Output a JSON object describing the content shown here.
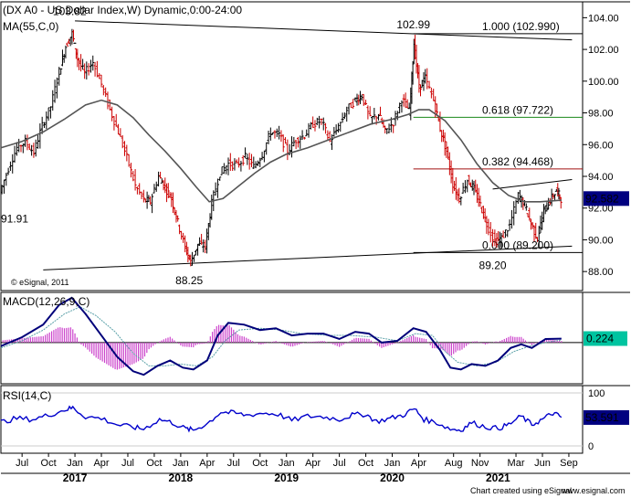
{
  "chart_data": {
    "type": "line",
    "symbol": "DX A0",
    "instrument": "US Dollar Index",
    "timeframe": "W",
    "session": "Dynamic,0:00-24:00",
    "header_text": "(DX A0 - US Dollar Index,W) Dynamic,0:00-24:00",
    "ma_label": "MA(55,C,0)",
    "last_price": "92.582",
    "price_axis": {
      "ylim": [
        86.8,
        105.0
      ],
      "ticks": [
        "104.00",
        "102.00",
        "100.00",
        "98.00",
        "96.00",
        "94.00",
        "92.00",
        "90.00",
        "88.00"
      ],
      "tick_values": [
        104,
        102,
        100,
        98,
        96,
        94,
        92,
        90,
        88
      ]
    },
    "x_axis": {
      "month_ticks": [
        "Jul",
        "Oct",
        "Jan",
        "Apr",
        "Jul",
        "Oct",
        "Jan",
        "Apr",
        "Jul",
        "Oct",
        "Jan",
        "Apr",
        "Jul",
        "Oct",
        "Jan",
        "Apr",
        "Aug",
        "Nov",
        "Mar",
        "Jun",
        "Sep"
      ],
      "month_tick_t": [
        2016.5,
        2016.75,
        2017.0,
        2017.25,
        2017.5,
        2017.75,
        2018.0,
        2018.25,
        2018.5,
        2018.75,
        2019.0,
        2019.25,
        2019.5,
        2019.75,
        2020.0,
        2020.25,
        2020.58,
        2020.83,
        2021.17,
        2021.42,
        2021.67
      ],
      "year_ticks": [
        "2017",
        "2018",
        "2019",
        "2020",
        "2021"
      ],
      "year_tick_t": [
        2017.0,
        2018.0,
        2019.0,
        2020.0,
        2021.0
      ],
      "range": [
        2016.3,
        2021.8
      ]
    },
    "price_series": [
      {
        "t": 2016.3,
        "v": 93.0
      },
      {
        "t": 2016.38,
        "v": 94.5
      },
      {
        "t": 2016.46,
        "v": 95.8
      },
      {
        "t": 2016.54,
        "v": 96.2
      },
      {
        "t": 2016.62,
        "v": 95.5
      },
      {
        "t": 2016.7,
        "v": 97.2
      },
      {
        "t": 2016.78,
        "v": 98.4
      },
      {
        "t": 2016.86,
        "v": 100.6
      },
      {
        "t": 2016.92,
        "v": 102.2
      },
      {
        "t": 2016.98,
        "v": 103.0
      },
      {
        "t": 2017.03,
        "v": 101.4
      },
      {
        "t": 2017.1,
        "v": 100.5
      },
      {
        "t": 2017.18,
        "v": 101.2
      },
      {
        "t": 2017.26,
        "v": 99.8
      },
      {
        "t": 2017.34,
        "v": 98.2
      },
      {
        "t": 2017.42,
        "v": 96.8
      },
      {
        "t": 2017.5,
        "v": 95.2
      },
      {
        "t": 2017.58,
        "v": 93.4
      },
      {
        "t": 2017.66,
        "v": 92.5
      },
      {
        "t": 2017.72,
        "v": 92.4
      },
      {
        "t": 2017.8,
        "v": 94.0
      },
      {
        "t": 2017.86,
        "v": 93.3
      },
      {
        "t": 2017.92,
        "v": 92.6
      },
      {
        "t": 2017.98,
        "v": 91.1
      },
      {
        "t": 2018.05,
        "v": 89.5
      },
      {
        "t": 2018.1,
        "v": 88.6
      },
      {
        "t": 2018.17,
        "v": 89.7
      },
      {
        "t": 2018.24,
        "v": 89.6
      },
      {
        "t": 2018.3,
        "v": 92.3
      },
      {
        "t": 2018.38,
        "v": 94.2
      },
      {
        "t": 2018.46,
        "v": 94.8
      },
      {
        "t": 2018.54,
        "v": 94.7
      },
      {
        "t": 2018.62,
        "v": 95.2
      },
      {
        "t": 2018.7,
        "v": 94.6
      },
      {
        "t": 2018.78,
        "v": 95.4
      },
      {
        "t": 2018.86,
        "v": 96.8
      },
      {
        "t": 2018.94,
        "v": 96.6
      },
      {
        "t": 2019.02,
        "v": 95.6
      },
      {
        "t": 2019.1,
        "v": 96.3
      },
      {
        "t": 2019.18,
        "v": 96.6
      },
      {
        "t": 2019.26,
        "v": 97.3
      },
      {
        "t": 2019.34,
        "v": 97.5
      },
      {
        "t": 2019.42,
        "v": 96.2
      },
      {
        "t": 2019.5,
        "v": 97.1
      },
      {
        "t": 2019.58,
        "v": 98.2
      },
      {
        "t": 2019.66,
        "v": 98.8
      },
      {
        "t": 2019.72,
        "v": 99.1
      },
      {
        "t": 2019.8,
        "v": 97.6
      },
      {
        "t": 2019.88,
        "v": 97.9
      },
      {
        "t": 2019.94,
        "v": 96.8
      },
      {
        "t": 2020.02,
        "v": 97.4
      },
      {
        "t": 2020.1,
        "v": 98.9
      },
      {
        "t": 2020.17,
        "v": 98.1
      },
      {
        "t": 2020.21,
        "v": 102.4
      },
      {
        "t": 2020.26,
        "v": 99.6
      },
      {
        "t": 2020.32,
        "v": 100.2
      },
      {
        "t": 2020.4,
        "v": 98.8
      },
      {
        "t": 2020.46,
        "v": 97.0
      },
      {
        "t": 2020.52,
        "v": 95.6
      },
      {
        "t": 2020.58,
        "v": 93.5
      },
      {
        "t": 2020.64,
        "v": 92.6
      },
      {
        "t": 2020.72,
        "v": 93.8
      },
      {
        "t": 2020.78,
        "v": 93.2
      },
      {
        "t": 2020.84,
        "v": 92.2
      },
      {
        "t": 2020.9,
        "v": 91.0
      },
      {
        "t": 2020.98,
        "v": 89.9
      },
      {
        "t": 2021.04,
        "v": 90.1
      },
      {
        "t": 2021.12,
        "v": 90.9
      },
      {
        "t": 2021.2,
        "v": 92.8
      },
      {
        "t": 2021.26,
        "v": 92.2
      },
      {
        "t": 2021.32,
        "v": 91.0
      },
      {
        "t": 2021.38,
        "v": 90.1
      },
      {
        "t": 2021.44,
        "v": 91.8
      },
      {
        "t": 2021.5,
        "v": 92.5
      },
      {
        "t": 2021.56,
        "v": 93.1
      },
      {
        "t": 2021.6,
        "v": 92.6
      }
    ],
    "ma_series": [
      {
        "t": 2016.3,
        "v": 95.8
      },
      {
        "t": 2016.5,
        "v": 96.2
      },
      {
        "t": 2016.7,
        "v": 96.8
      },
      {
        "t": 2016.9,
        "v": 97.6
      },
      {
        "t": 2017.1,
        "v": 98.5
      },
      {
        "t": 2017.25,
        "v": 98.8
      },
      {
        "t": 2017.4,
        "v": 98.5
      },
      {
        "t": 2017.55,
        "v": 97.7
      },
      {
        "t": 2017.7,
        "v": 96.6
      },
      {
        "t": 2017.85,
        "v": 95.6
      },
      {
        "t": 2018.0,
        "v": 94.5
      },
      {
        "t": 2018.15,
        "v": 93.3
      },
      {
        "t": 2018.27,
        "v": 92.4
      },
      {
        "t": 2018.4,
        "v": 92.6
      },
      {
        "t": 2018.55,
        "v": 93.4
      },
      {
        "t": 2018.7,
        "v": 94.2
      },
      {
        "t": 2018.85,
        "v": 94.9
      },
      {
        "t": 2019.0,
        "v": 95.4
      },
      {
        "t": 2019.2,
        "v": 95.8
      },
      {
        "t": 2019.4,
        "v": 96.3
      },
      {
        "t": 2019.6,
        "v": 96.8
      },
      {
        "t": 2019.8,
        "v": 97.3
      },
      {
        "t": 2020.0,
        "v": 97.6
      },
      {
        "t": 2020.15,
        "v": 97.9
      },
      {
        "t": 2020.25,
        "v": 98.2
      },
      {
        "t": 2020.35,
        "v": 98.2
      },
      {
        "t": 2020.5,
        "v": 97.5
      },
      {
        "t": 2020.65,
        "v": 96.3
      },
      {
        "t": 2020.8,
        "v": 94.8
      },
      {
        "t": 2020.95,
        "v": 93.6
      },
      {
        "t": 2021.1,
        "v": 92.8
      },
      {
        "t": 2021.25,
        "v": 92.4
      },
      {
        "t": 2021.4,
        "v": 92.4
      },
      {
        "t": 2021.6,
        "v": 92.5
      }
    ],
    "trendlines": [
      {
        "name": "upper-channel",
        "t1": 2017.0,
        "v1": 103.8,
        "t2": 2021.7,
        "v2": 102.6,
        "color": "#000000"
      },
      {
        "name": "lower-channel",
        "t1": 2016.7,
        "v1": 88.1,
        "t2": 2021.7,
        "v2": 89.6,
        "color": "#000000"
      },
      {
        "name": "recent-upper",
        "t1": 2020.95,
        "v1": 93.2,
        "t2": 2021.7,
        "v2": 93.8,
        "color": "#000000"
      }
    ],
    "fibo_levels": [
      {
        "label": "1.000 (102.990)",
        "value": 102.99,
        "color": "#000000",
        "from": 2020.2
      },
      {
        "label": "0.618 (97.722)",
        "value": 97.722,
        "color": "#1a8a1a",
        "from": 2020.2
      },
      {
        "label": "0.382 (94.468)",
        "value": 94.468,
        "color": "#a01010",
        "from": 2020.2
      },
      {
        "label": "0.000 (89.200)",
        "value": 89.2,
        "color": "#000000",
        "from": 2020.2
      }
    ],
    "annotations": [
      {
        "text": "103.82",
        "t": 2016.95,
        "v": 103.82
      },
      {
        "text": "102.99",
        "t": 2020.2,
        "v": 102.99
      },
      {
        "text": "88.25",
        "t": 2018.08,
        "v": 88.25
      },
      {
        "text": "89.20",
        "t": 2020.95,
        "v": 89.2
      },
      {
        "text": "91.91",
        "t": 2016.3,
        "v": 91.91
      }
    ],
    "macd": {
      "label": "MACD(12,26,9,C)",
      "value_label": "0.224",
      "macd_series": [
        {
          "t": 2016.3,
          "v": -0.2
        },
        {
          "t": 2016.5,
          "v": 0.3
        },
        {
          "t": 2016.7,
          "v": 1.0
        },
        {
          "t": 2016.85,
          "v": 2.1
        },
        {
          "t": 2016.97,
          "v": 2.5
        },
        {
          "t": 2017.1,
          "v": 1.6
        },
        {
          "t": 2017.25,
          "v": 0.4
        },
        {
          "t": 2017.4,
          "v": -0.8
        },
        {
          "t": 2017.55,
          "v": -1.6
        },
        {
          "t": 2017.65,
          "v": -1.8
        },
        {
          "t": 2017.78,
          "v": -1.3
        },
        {
          "t": 2017.9,
          "v": -1.0
        },
        {
          "t": 2018.02,
          "v": -1.4
        },
        {
          "t": 2018.12,
          "v": -1.5
        },
        {
          "t": 2018.25,
          "v": -1.0
        },
        {
          "t": 2018.35,
          "v": 0.4
        },
        {
          "t": 2018.45,
          "v": 1.1
        },
        {
          "t": 2018.6,
          "v": 1.0
        },
        {
          "t": 2018.75,
          "v": 0.7
        },
        {
          "t": 2018.9,
          "v": 0.8
        },
        {
          "t": 2019.05,
          "v": 0.4
        },
        {
          "t": 2019.2,
          "v": 0.5
        },
        {
          "t": 2019.35,
          "v": 0.5
        },
        {
          "t": 2019.5,
          "v": 0.2
        },
        {
          "t": 2019.65,
          "v": 0.6
        },
        {
          "t": 2019.78,
          "v": 0.5
        },
        {
          "t": 2019.9,
          "v": 0.0
        },
        {
          "t": 2020.05,
          "v": 0.1
        },
        {
          "t": 2020.2,
          "v": 0.8
        },
        {
          "t": 2020.32,
          "v": 0.6
        },
        {
          "t": 2020.45,
          "v": -0.4
        },
        {
          "t": 2020.55,
          "v": -1.4
        },
        {
          "t": 2020.65,
          "v": -1.5
        },
        {
          "t": 2020.75,
          "v": -1.2
        },
        {
          "t": 2020.88,
          "v": -1.3
        },
        {
          "t": 2021.0,
          "v": -1.0
        },
        {
          "t": 2021.12,
          "v": -0.3
        },
        {
          "t": 2021.22,
          "v": -0.1
        },
        {
          "t": 2021.32,
          "v": -0.3
        },
        {
          "t": 2021.45,
          "v": 0.2
        },
        {
          "t": 2021.6,
          "v": 0.22
        }
      ],
      "signal_series": [
        {
          "t": 2016.3,
          "v": -0.3
        },
        {
          "t": 2016.5,
          "v": 0.1
        },
        {
          "t": 2016.7,
          "v": 0.7
        },
        {
          "t": 2016.9,
          "v": 1.6
        },
        {
          "t": 2017.05,
          "v": 2.0
        },
        {
          "t": 2017.2,
          "v": 1.5
        },
        {
          "t": 2017.38,
          "v": 0.6
        },
        {
          "t": 2017.55,
          "v": -0.6
        },
        {
          "t": 2017.7,
          "v": -1.3
        },
        {
          "t": 2017.85,
          "v": -1.3
        },
        {
          "t": 2018.0,
          "v": -1.2
        },
        {
          "t": 2018.15,
          "v": -1.3
        },
        {
          "t": 2018.3,
          "v": -0.8
        },
        {
          "t": 2018.42,
          "v": 0.1
        },
        {
          "t": 2018.55,
          "v": 0.7
        },
        {
          "t": 2018.75,
          "v": 0.8
        },
        {
          "t": 2018.95,
          "v": 0.7
        },
        {
          "t": 2019.15,
          "v": 0.5
        },
        {
          "t": 2019.4,
          "v": 0.4
        },
        {
          "t": 2019.6,
          "v": 0.4
        },
        {
          "t": 2019.85,
          "v": 0.3
        },
        {
          "t": 2020.05,
          "v": 0.1
        },
        {
          "t": 2020.22,
          "v": 0.5
        },
        {
          "t": 2020.38,
          "v": 0.4
        },
        {
          "t": 2020.5,
          "v": -0.5
        },
        {
          "t": 2020.62,
          "v": -1.1
        },
        {
          "t": 2020.8,
          "v": -1.3
        },
        {
          "t": 2020.98,
          "v": -1.1
        },
        {
          "t": 2021.15,
          "v": -0.5
        },
        {
          "t": 2021.3,
          "v": -0.2
        },
        {
          "t": 2021.45,
          "v": 0.0
        },
        {
          "t": 2021.6,
          "v": 0.15
        }
      ],
      "ylim": [
        -2.3,
        2.8
      ]
    },
    "rsi": {
      "label": "RSI(14,C)",
      "value_label": "53.591",
      "axis_ticks": [
        "100",
        "0"
      ],
      "ylim": [
        0,
        100
      ],
      "series": [
        {
          "t": 2016.3,
          "v": 45
        },
        {
          "t": 2016.45,
          "v": 52
        },
        {
          "t": 2016.6,
          "v": 50
        },
        {
          "t": 2016.75,
          "v": 58
        },
        {
          "t": 2016.9,
          "v": 68
        },
        {
          "t": 2016.98,
          "v": 72
        },
        {
          "t": 2017.1,
          "v": 55
        },
        {
          "t": 2017.25,
          "v": 52
        },
        {
          "t": 2017.4,
          "v": 40
        },
        {
          "t": 2017.55,
          "v": 35
        },
        {
          "t": 2017.65,
          "v": 32
        },
        {
          "t": 2017.8,
          "v": 50
        },
        {
          "t": 2017.92,
          "v": 44
        },
        {
          "t": 2018.05,
          "v": 32
        },
        {
          "t": 2018.12,
          "v": 30
        },
        {
          "t": 2018.25,
          "v": 42
        },
        {
          "t": 2018.38,
          "v": 64
        },
        {
          "t": 2018.5,
          "v": 62
        },
        {
          "t": 2018.62,
          "v": 58
        },
        {
          "t": 2018.78,
          "v": 62
        },
        {
          "t": 2018.92,
          "v": 60
        },
        {
          "t": 2019.05,
          "v": 48
        },
        {
          "t": 2019.2,
          "v": 56
        },
        {
          "t": 2019.35,
          "v": 55
        },
        {
          "t": 2019.5,
          "v": 50
        },
        {
          "t": 2019.62,
          "v": 58
        },
        {
          "t": 2019.75,
          "v": 60
        },
        {
          "t": 2019.85,
          "v": 46
        },
        {
          "t": 2019.98,
          "v": 52
        },
        {
          "t": 2020.1,
          "v": 58
        },
        {
          "t": 2020.21,
          "v": 70
        },
        {
          "t": 2020.3,
          "v": 50
        },
        {
          "t": 2020.42,
          "v": 44
        },
        {
          "t": 2020.55,
          "v": 32
        },
        {
          "t": 2020.65,
          "v": 30
        },
        {
          "t": 2020.75,
          "v": 44
        },
        {
          "t": 2020.88,
          "v": 36
        },
        {
          "t": 2021.0,
          "v": 33
        },
        {
          "t": 2021.1,
          "v": 40
        },
        {
          "t": 2021.22,
          "v": 56
        },
        {
          "t": 2021.32,
          "v": 40
        },
        {
          "t": 2021.42,
          "v": 50
        },
        {
          "t": 2021.52,
          "v": 62
        },
        {
          "t": 2021.6,
          "v": 54
        }
      ]
    },
    "colors": {
      "up_bar": "#000000",
      "down_bar": "#cc0000",
      "ma": "#555555",
      "macd": "#00007a",
      "signal": "#5aa0a8",
      "histogram": "#cc44cc",
      "rsi": "#0000cc",
      "last_price_bg": "#000080"
    }
  },
  "footer": {
    "copyright_small": "© eSignal, 2011",
    "copyright": "Chart created using eSignal",
    "website": "www.esignal.com"
  }
}
